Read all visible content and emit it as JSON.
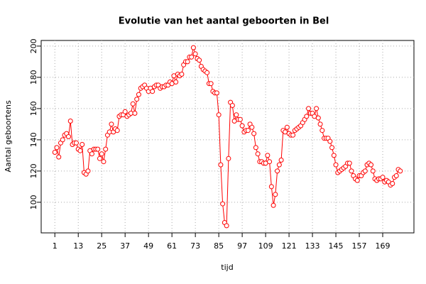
{
  "chart_data": {
    "type": "line",
    "title": "Evolutie van het aantal geboorten in Bel",
    "x_label": "tijd",
    "y_label": "Aantal geboortens",
    "color": "#ff0000",
    "grid": true,
    "x": [
      1,
      2,
      3,
      4,
      5,
      6,
      7,
      8,
      9,
      10,
      11,
      12,
      13,
      14,
      15,
      16,
      17,
      18,
      19,
      20,
      21,
      22,
      23,
      24,
      25,
      26,
      27,
      28,
      29,
      30,
      31,
      32,
      33,
      34,
      35,
      36,
      37,
      38,
      39,
      40,
      41,
      42,
      43,
      44,
      45,
      46,
      47,
      48,
      49,
      50,
      51,
      52,
      53,
      54,
      55,
      56,
      57,
      58,
      59,
      60,
      61,
      62,
      63,
      64,
      65,
      66,
      67,
      68,
      69,
      70,
      71,
      72,
      73,
      74,
      75,
      76,
      77,
      78,
      79,
      80,
      81,
      82,
      83,
      84,
      85,
      86,
      87,
      88,
      89,
      90,
      91,
      92,
      93,
      94,
      95,
      96,
      97,
      98,
      99,
      100,
      101,
      102,
      103,
      104,
      105,
      106,
      107,
      108,
      109,
      110,
      111,
      112,
      113,
      114,
      115,
      116,
      117,
      118,
      119,
      120,
      121,
      122,
      123,
      124,
      125,
      126,
      127,
      128,
      129,
      130,
      131,
      132,
      133,
      134,
      135,
      136,
      137,
      138,
      139,
      140,
      141,
      142,
      143,
      144,
      145,
      146,
      147,
      148,
      149,
      150,
      151,
      152,
      153,
      154,
      155,
      156,
      157,
      158,
      159,
      160,
      161,
      162,
      163,
      164,
      165,
      166,
      167,
      168,
      169,
      170,
      171,
      172,
      173,
      174,
      175,
      176,
      177,
      178
    ],
    "values": [
      132,
      135,
      129,
      138,
      140,
      143,
      144,
      142,
      152,
      137,
      138,
      138,
      134,
      133,
      137,
      119,
      118,
      120,
      133,
      131,
      134,
      134,
      134,
      128,
      131,
      126,
      134,
      143,
      145,
      150,
      145,
      147,
      146,
      155,
      156,
      156,
      158,
      155,
      156,
      157,
      163,
      157,
      166,
      169,
      173,
      174,
      175,
      173,
      171,
      173,
      171,
      174,
      175,
      175,
      173,
      174,
      174,
      175,
      175,
      177,
      176,
      181,
      177,
      182,
      181,
      182,
      188,
      190,
      190,
      193,
      193,
      199,
      195,
      192,
      191,
      187,
      185,
      184,
      183,
      176,
      176,
      171,
      170,
      170,
      156,
      124,
      99,
      87,
      85,
      128,
      164,
      162,
      152,
      156,
      153,
      153,
      149,
      145,
      146,
      146,
      150,
      148,
      144,
      135,
      131,
      126,
      126,
      125,
      125,
      130,
      126,
      110,
      98,
      105,
      120,
      124,
      127,
      146,
      145,
      148,
      144,
      143,
      143,
      146,
      147,
      148,
      149,
      151,
      153,
      155,
      160,
      157,
      157,
      155,
      160,
      154,
      150,
      146,
      141,
      141,
      141,
      139,
      135,
      130,
      124,
      119,
      120,
      121,
      122,
      123,
      125,
      125,
      120,
      117,
      115,
      114,
      117,
      117,
      119,
      120,
      124,
      125,
      124,
      120,
      115,
      114,
      115,
      115,
      116,
      113,
      114,
      113,
      111,
      112,
      116,
      117,
      121,
      120
    ],
    "xlim": [
      -6,
      185
    ],
    "ylim": [
      80.4,
      203.6
    ],
    "xticks": [
      1,
      13,
      25,
      37,
      49,
      61,
      73,
      85,
      97,
      109,
      121,
      133,
      145,
      157,
      169
    ],
    "yticks": [
      100,
      120,
      140,
      160,
      180,
      200
    ]
  }
}
